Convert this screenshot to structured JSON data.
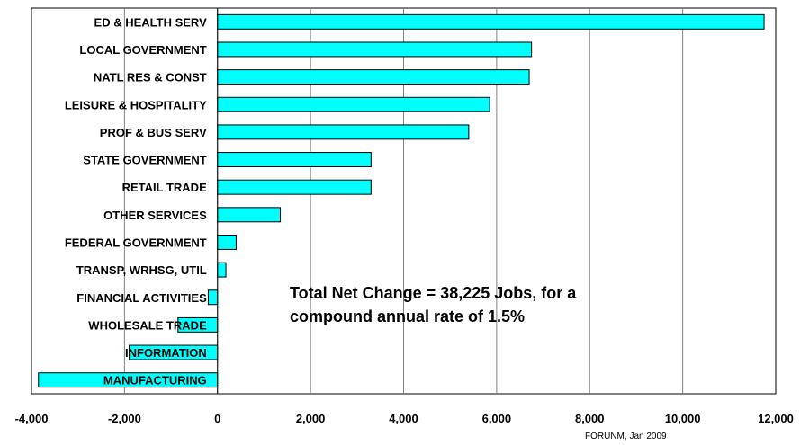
{
  "chart_data": {
    "type": "bar",
    "orientation": "horizontal",
    "categories": [
      "ED & HEALTH SERV",
      "LOCAL GOVERNMENT",
      "NATL RES & CONST",
      "LEISURE & HOSPITALITY",
      "PROF & BUS SERV",
      "STATE GOVERNMENT",
      "RETAIL TRADE",
      "OTHER SERVICES",
      "FEDERAL GOVERNMENT",
      "TRANSP, WRHSG, UTIL",
      "FINANCIAL ACTIVITIES",
      "WHOLESALE TRADE",
      "INFORMATION",
      "MANUFACTURING"
    ],
    "values": [
      11750,
      6750,
      6700,
      5850,
      5400,
      3300,
      3300,
      1350,
      400,
      180,
      -200,
      -850,
      -1900,
      -3850
    ],
    "title": "",
    "xlabel": "",
    "ylabel": "",
    "xlim": [
      -4000,
      12000
    ],
    "xticks": [
      -4000,
      -2000,
      0,
      2000,
      4000,
      6000,
      8000,
      10000,
      12000
    ],
    "xtick_labels": [
      "-4,000",
      "-2,000",
      "0",
      "2,000",
      "4,000",
      "6,000",
      "8,000",
      "10,000",
      "12,000"
    ],
    "grid": "vertical",
    "bar_color": "#00FFFF",
    "bar_edge_color": "#000000",
    "annotation": [
      "Total Net Change = 38,225 Jobs, for a",
      "compound annual rate of 1.5%"
    ]
  },
  "source_note": "FORUNM, Jan 2009"
}
